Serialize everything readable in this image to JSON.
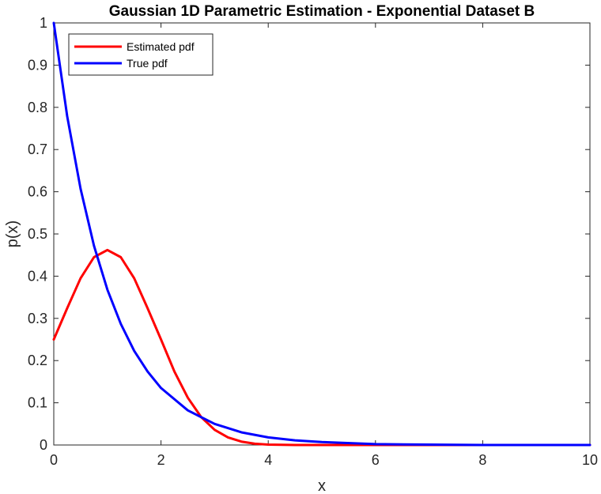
{
  "chart_data": {
    "type": "line",
    "title": "Gaussian 1D Parametric Estimation - Exponential Dataset B",
    "xlabel": "x",
    "ylabel": "p(x)",
    "xlim": [
      0,
      10
    ],
    "ylim": [
      0,
      1
    ],
    "xticks": [
      "0",
      "2",
      "4",
      "6",
      "8",
      "10"
    ],
    "yticks": [
      "0",
      "0.1",
      "0.2",
      "0.3",
      "0.4",
      "0.5",
      "0.6",
      "0.7",
      "0.8",
      "0.9",
      "1"
    ],
    "grid": false,
    "legend_position": "top-left",
    "series": [
      {
        "name": "Estimated pdf",
        "color": "#ff0000",
        "x": [
          0,
          0.25,
          0.5,
          0.75,
          1.0,
          1.25,
          1.5,
          1.75,
          2.0,
          2.25,
          2.5,
          2.75,
          3.0,
          3.25,
          3.5,
          3.75,
          4.0,
          4.5,
          5,
          6,
          7,
          8,
          9,
          10
        ],
        "y": [
          0.25,
          0.324,
          0.395,
          0.445,
          0.462,
          0.445,
          0.395,
          0.324,
          0.25,
          0.174,
          0.112,
          0.066,
          0.036,
          0.018,
          0.008,
          0.003,
          0.001,
          0.0,
          0.0,
          0.0,
          0.0,
          0.0,
          0.0,
          0.0
        ]
      },
      {
        "name": "True pdf",
        "color": "#0000ff",
        "x": [
          0,
          0.25,
          0.5,
          0.75,
          1.0,
          1.25,
          1.5,
          1.75,
          2.0,
          2.5,
          3.0,
          3.5,
          4.0,
          4.5,
          5.0,
          6.0,
          7.0,
          8.0,
          9.0,
          10.0
        ],
        "y": [
          1.0,
          0.779,
          0.607,
          0.472,
          0.368,
          0.287,
          0.223,
          0.174,
          0.135,
          0.082,
          0.05,
          0.03,
          0.018,
          0.011,
          0.007,
          0.002,
          0.001,
          0.0,
          0.0,
          0.0
        ]
      }
    ]
  }
}
